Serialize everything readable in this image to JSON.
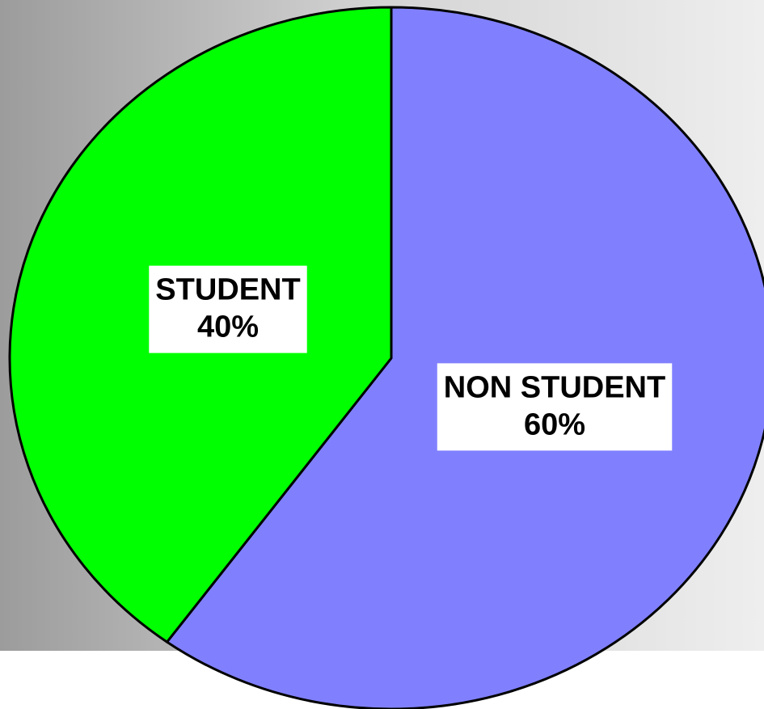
{
  "chart_data": {
    "type": "pie",
    "categories": [
      "NON STUDENT",
      "STUDENT"
    ],
    "values": [
      60,
      40
    ],
    "value_labels": [
      "60%",
      "40%"
    ],
    "colors": [
      "#8080ff",
      "#00ff00"
    ]
  }
}
